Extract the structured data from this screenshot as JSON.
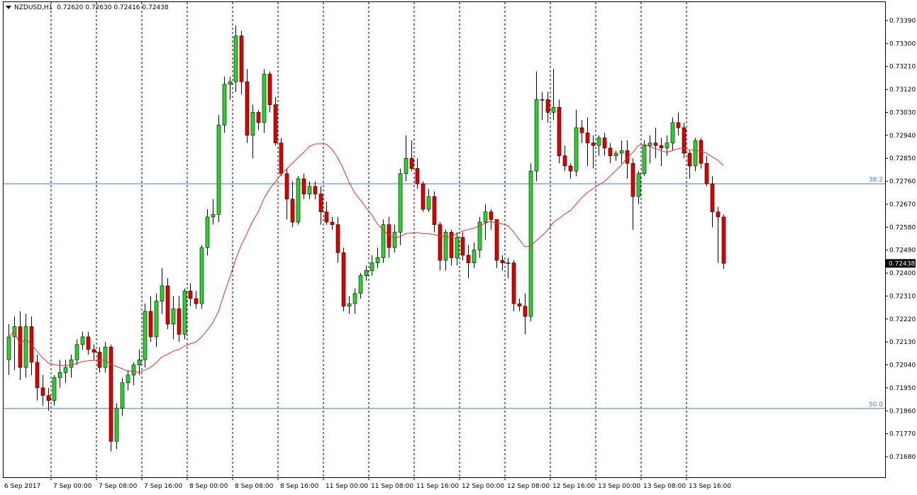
{
  "header": {
    "symbol": "NZDUSD,H1",
    "ohlc": "0.72620 0.72630 0.72416 0.72438"
  },
  "colors": {
    "bull": "#32cd32",
    "bear": "#e00000",
    "wick": "#000000",
    "ma": "#e03030",
    "hline": "#4a7ab5",
    "grid": "#000000",
    "price_tag_bg": "#000000",
    "price_tag_fg": "#ffffff"
  },
  "chart_data": {
    "type": "candlestick",
    "title": "NZDUSD,H1",
    "ylim": [
      0.7164,
      0.7344
    ],
    "y_ticks": [
      "0.73390",
      "0.73300",
      "0.73210",
      "0.73120",
      "0.73030",
      "0.72940",
      "0.72850",
      "0.72760",
      "0.72670",
      "0.72580",
      "0.72490",
      "0.72400",
      "0.72310",
      "0.72220",
      "0.72130",
      "0.72040",
      "0.71950",
      "0.71860",
      "0.71770",
      "0.71680"
    ],
    "x_labels": [
      "6 Sep 2017",
      "7 Sep 00:00",
      "7 Sep 08:00",
      "7 Sep 16:00",
      "8 Sep 00:00",
      "8 Sep 08:00",
      "8 Sep 16:00",
      "11 Sep 00:00",
      "11 Sep 08:00",
      "11 Sep 16:00",
      "12 Sep 00:00",
      "12 Sep 08:00",
      "12 Sep 16:00",
      "13 Sep 00:00",
      "13 Sep 08:00",
      "13 Sep 16:00"
    ],
    "current_price": "0.72438",
    "fib_levels": [
      {
        "label": "38.2",
        "value": 0.7275
      },
      {
        "label": "50.0",
        "value": 0.71869
      }
    ],
    "candles": [
      [
        0.7206,
        0.722,
        0.72,
        0.7215
      ],
      [
        0.7215,
        0.7223,
        0.7202,
        0.7219
      ],
      [
        0.7219,
        0.7225,
        0.7198,
        0.7203
      ],
      [
        0.7203,
        0.7224,
        0.7199,
        0.7219
      ],
      [
        0.7219,
        0.7223,
        0.72,
        0.7205
      ],
      [
        0.7205,
        0.7208,
        0.719,
        0.7195
      ],
      [
        0.7195,
        0.72,
        0.7188,
        0.7192
      ],
      [
        0.7192,
        0.7195,
        0.7186,
        0.719
      ],
      [
        0.719,
        0.72,
        0.7188,
        0.7199
      ],
      [
        0.7199,
        0.7206,
        0.7195,
        0.7201
      ],
      [
        0.7201,
        0.7206,
        0.7197,
        0.7203
      ],
      [
        0.7203,
        0.7208,
        0.7199,
        0.7206
      ],
      [
        0.7206,
        0.7214,
        0.7204,
        0.7212
      ],
      [
        0.7212,
        0.7217,
        0.721,
        0.7215
      ],
      [
        0.7215,
        0.7217,
        0.7208,
        0.721
      ],
      [
        0.721,
        0.7212,
        0.7206,
        0.7209
      ],
      [
        0.7209,
        0.7211,
        0.7201,
        0.7203
      ],
      [
        0.7203,
        0.7213,
        0.7201,
        0.7211
      ],
      [
        0.7211,
        0.7212,
        0.717,
        0.7174
      ],
      [
        0.7174,
        0.7189,
        0.7171,
        0.7187
      ],
      [
        0.7187,
        0.7199,
        0.7184,
        0.7197
      ],
      [
        0.7197,
        0.7202,
        0.7194,
        0.72
      ],
      [
        0.72,
        0.7205,
        0.7196,
        0.7204
      ],
      [
        0.7204,
        0.721,
        0.72,
        0.7206
      ],
      [
        0.7206,
        0.7228,
        0.7203,
        0.7225
      ],
      [
        0.7225,
        0.7231,
        0.7213,
        0.7215
      ],
      [
        0.7215,
        0.7232,
        0.7211,
        0.7229
      ],
      [
        0.7229,
        0.7242,
        0.7224,
        0.7235
      ],
      [
        0.7235,
        0.7238,
        0.7218,
        0.722
      ],
      [
        0.722,
        0.7231,
        0.7214,
        0.7226
      ],
      [
        0.7226,
        0.7231,
        0.7213,
        0.7216
      ],
      [
        0.7216,
        0.7234,
        0.7214,
        0.7233
      ],
      [
        0.7233,
        0.7236,
        0.7227,
        0.723
      ],
      [
        0.723,
        0.7233,
        0.7226,
        0.7228
      ],
      [
        0.7228,
        0.7251,
        0.7226,
        0.725
      ],
      [
        0.725,
        0.7265,
        0.7247,
        0.7262
      ],
      [
        0.7262,
        0.7269,
        0.7259,
        0.7263
      ],
      [
        0.7263,
        0.7302,
        0.726,
        0.7298
      ],
      [
        0.7298,
        0.7317,
        0.7295,
        0.7314
      ],
      [
        0.7314,
        0.7317,
        0.7308,
        0.7315
      ],
      [
        0.7315,
        0.7337,
        0.7311,
        0.7333
      ],
      [
        0.7333,
        0.7335,
        0.731,
        0.7315
      ],
      [
        0.7315,
        0.732,
        0.7291,
        0.7294
      ],
      [
        0.7294,
        0.7306,
        0.7285,
        0.7303
      ],
      [
        0.7303,
        0.7304,
        0.7296,
        0.7299
      ],
      [
        0.7299,
        0.732,
        0.7295,
        0.7318
      ],
      [
        0.7318,
        0.7319,
        0.7303,
        0.7306
      ],
      [
        0.7306,
        0.7309,
        0.729,
        0.7291
      ],
      [
        0.7291,
        0.7293,
        0.7278,
        0.7279
      ],
      [
        0.7279,
        0.7281,
        0.7261,
        0.7269
      ],
      [
        0.7269,
        0.7276,
        0.7258,
        0.726
      ],
      [
        0.726,
        0.7278,
        0.7259,
        0.7277
      ],
      [
        0.7277,
        0.7279,
        0.7269,
        0.7271
      ],
      [
        0.7271,
        0.7276,
        0.7269,
        0.7274
      ],
      [
        0.7274,
        0.7276,
        0.7269,
        0.7271
      ],
      [
        0.7271,
        0.7274,
        0.7259,
        0.7264
      ],
      [
        0.7264,
        0.7268,
        0.7259,
        0.726
      ],
      [
        0.726,
        0.7262,
        0.7257,
        0.7259
      ],
      [
        0.7259,
        0.7262,
        0.7244,
        0.7248
      ],
      [
        0.7248,
        0.725,
        0.7225,
        0.7227
      ],
      [
        0.7227,
        0.7231,
        0.7224,
        0.7228
      ],
      [
        0.7228,
        0.7234,
        0.7224,
        0.7232
      ],
      [
        0.7232,
        0.724,
        0.723,
        0.7239
      ],
      [
        0.7239,
        0.7243,
        0.7237,
        0.7241
      ],
      [
        0.7241,
        0.7247,
        0.7239,
        0.7244
      ],
      [
        0.7244,
        0.725,
        0.7242,
        0.7246
      ],
      [
        0.7246,
        0.7261,
        0.7244,
        0.7259
      ],
      [
        0.7259,
        0.7262,
        0.7246,
        0.725
      ],
      [
        0.725,
        0.7259,
        0.7248,
        0.7256
      ],
      [
        0.7256,
        0.7281,
        0.7251,
        0.7279
      ],
      [
        0.7279,
        0.7294,
        0.7276,
        0.7285
      ],
      [
        0.7285,
        0.7292,
        0.728,
        0.7281
      ],
      [
        0.7281,
        0.7285,
        0.7273,
        0.7275
      ],
      [
        0.7275,
        0.7276,
        0.7264,
        0.7265
      ],
      [
        0.7265,
        0.7273,
        0.7264,
        0.727
      ],
      [
        0.727,
        0.7272,
        0.7256,
        0.7259
      ],
      [
        0.7259,
        0.726,
        0.7241,
        0.7245
      ],
      [
        0.7245,
        0.7257,
        0.7241,
        0.7256
      ],
      [
        0.7256,
        0.7257,
        0.7243,
        0.7246
      ],
      [
        0.7246,
        0.7256,
        0.7243,
        0.7254
      ],
      [
        0.7254,
        0.7256,
        0.7245,
        0.7247
      ],
      [
        0.7247,
        0.7251,
        0.7238,
        0.7244
      ],
      [
        0.7244,
        0.7252,
        0.7242,
        0.7249
      ],
      [
        0.7249,
        0.7262,
        0.7246,
        0.726
      ],
      [
        0.726,
        0.7267,
        0.7253,
        0.7264
      ],
      [
        0.7264,
        0.7265,
        0.7257,
        0.7261
      ],
      [
        0.7261,
        0.7261,
        0.7242,
        0.7245
      ],
      [
        0.7245,
        0.7247,
        0.7241,
        0.7244
      ],
      [
        0.7244,
        0.7246,
        0.7238,
        0.7244
      ],
      [
        0.7244,
        0.7245,
        0.7225,
        0.7228
      ],
      [
        0.7228,
        0.723,
        0.7225,
        0.7227
      ],
      [
        0.7227,
        0.7232,
        0.7216,
        0.7223
      ],
      [
        0.7223,
        0.7283,
        0.7221,
        0.728
      ],
      [
        0.728,
        0.7319,
        0.7276,
        0.7308
      ],
      [
        0.7308,
        0.7311,
        0.73,
        0.7308
      ],
      [
        0.7308,
        0.7311,
        0.7299,
        0.7303
      ],
      [
        0.7303,
        0.732,
        0.73,
        0.7305
      ],
      [
        0.7305,
        0.7308,
        0.7283,
        0.7286
      ],
      [
        0.7286,
        0.729,
        0.728,
        0.7282
      ],
      [
        0.7282,
        0.7283,
        0.7277,
        0.728
      ],
      [
        0.728,
        0.7304,
        0.7278,
        0.7297
      ],
      [
        0.7297,
        0.73,
        0.7291,
        0.7295
      ],
      [
        0.7295,
        0.7301,
        0.7282,
        0.7291
      ],
      [
        0.7291,
        0.7294,
        0.7281,
        0.729
      ],
      [
        0.729,
        0.7294,
        0.7286,
        0.7293
      ],
      [
        0.7293,
        0.7295,
        0.7286,
        0.7289
      ],
      [
        0.7289,
        0.7291,
        0.7283,
        0.7286
      ],
      [
        0.7286,
        0.7288,
        0.7284,
        0.7287
      ],
      [
        0.7287,
        0.7292,
        0.7283,
        0.7288
      ],
      [
        0.7288,
        0.7292,
        0.7277,
        0.7283
      ],
      [
        0.7283,
        0.7285,
        0.7257,
        0.727
      ],
      [
        0.727,
        0.728,
        0.7267,
        0.7279
      ],
      [
        0.7279,
        0.7292,
        0.7278,
        0.729
      ],
      [
        0.729,
        0.7294,
        0.7283,
        0.7291
      ],
      [
        0.7291,
        0.7297,
        0.7285,
        0.729
      ],
      [
        0.729,
        0.7293,
        0.7282,
        0.7289
      ],
      [
        0.7289,
        0.7294,
        0.7286,
        0.7291
      ],
      [
        0.7291,
        0.7301,
        0.7288,
        0.7299
      ],
      [
        0.7299,
        0.7303,
        0.7294,
        0.7297
      ],
      [
        0.7297,
        0.7299,
        0.7285,
        0.7287
      ],
      [
        0.7287,
        0.7288,
        0.7277,
        0.7282
      ],
      [
        0.7282,
        0.7293,
        0.728,
        0.7292
      ],
      [
        0.7292,
        0.7293,
        0.7281,
        0.7283
      ],
      [
        0.7283,
        0.7286,
        0.7274,
        0.7275
      ],
      [
        0.7275,
        0.7278,
        0.7258,
        0.7264
      ],
      [
        0.7264,
        0.7266,
        0.7244,
        0.7262
      ],
      [
        0.7262,
        0.7263,
        0.72416,
        0.72438
      ]
    ]
  }
}
